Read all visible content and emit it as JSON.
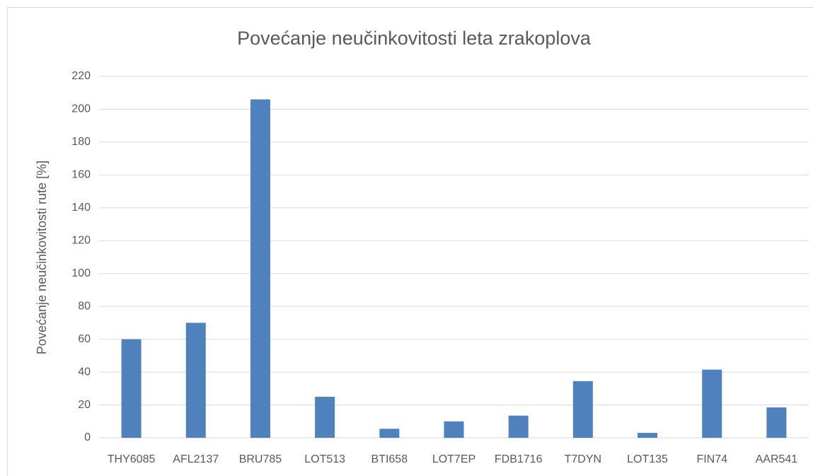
{
  "chart_data": {
    "type": "bar",
    "title": "Povećanje neučinkovitosti leta zrakoplova",
    "y_label": "Povećanje neučinkovitosti rute [%]",
    "categories": [
      "THY6085",
      "AFL2137",
      "BRU785",
      "LOT513",
      "BTI658",
      "LOT7EP",
      "FDB1716",
      "T7DYN",
      "LOT135",
      "FIN74",
      "AAR541"
    ],
    "values": [
      60,
      70,
      206,
      25,
      5.5,
      10,
      13.5,
      34.5,
      3,
      41.5,
      18.5
    ],
    "color": "#4f81bd",
    "ylim": [
      0,
      220
    ],
    "yticks": [
      0,
      20,
      40,
      60,
      80,
      100,
      120,
      140,
      160,
      180,
      200,
      220
    ],
    "grid": true
  }
}
